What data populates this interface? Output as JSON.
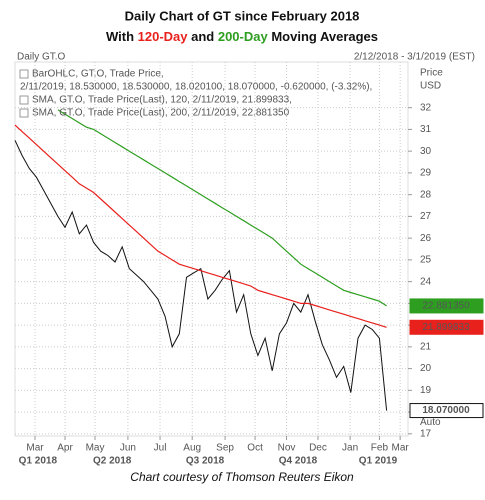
{
  "chart_data": {
    "type": "line",
    "title": "Daily Chart of GT since February 2018",
    "subtitle_parts": [
      {
        "text": "With ",
        "color": "#111111"
      },
      {
        "text": "120-Day",
        "color": "#e8211d"
      },
      {
        "text": " and ",
        "color": "#111111"
      },
      {
        "text": "200-Day",
        "color": "#2e9e20"
      },
      {
        "text": " Moving Averages",
        "color": "#111111"
      }
    ],
    "chart_label": "Daily GT.O",
    "date_range": "2/12/2018 - 3/1/2019 (EST)",
    "y_axis_label": [
      "Price",
      "USD"
    ],
    "auto_label": "Auto",
    "footer": "Chart courtesy of Thomson Reuters Eikon",
    "xlim": [
      0,
      55
    ],
    "xticks": [
      {
        "value": 2.8,
        "label": "Mar"
      },
      {
        "value": 7.0,
        "label": "Apr"
      },
      {
        "value": 11.2,
        "label": "May"
      },
      {
        "value": 15.8,
        "label": "Jun"
      },
      {
        "value": 20.3,
        "label": "Jul"
      },
      {
        "value": 24.8,
        "label": "Aug"
      },
      {
        "value": 29.4,
        "label": "Sep"
      },
      {
        "value": 33.6,
        "label": "Oct"
      },
      {
        "value": 38.0,
        "label": "Nov"
      },
      {
        "value": 42.4,
        "label": "Dec"
      },
      {
        "value": 46.9,
        "label": "Jan"
      },
      {
        "value": 51.0,
        "label": "Feb"
      },
      {
        "value": 53.9,
        "label": "Mar"
      }
    ],
    "quarter_ticks": [
      {
        "value": 3.2,
        "label": "Q1 2018"
      },
      {
        "value": 13.6,
        "label": "Q2 2018"
      },
      {
        "value": 26.6,
        "label": "Q3 2018"
      },
      {
        "value": 39.6,
        "label": "Q4 2018"
      },
      {
        "value": 50.8,
        "label": "Q1 2019"
      }
    ],
    "ylim": [
      16.9,
      34.1
    ],
    "yticks": [
      17,
      18,
      19,
      20,
      21,
      22,
      23,
      24,
      25,
      26,
      27,
      28,
      29,
      30,
      31,
      32
    ],
    "grid": true,
    "series": [
      {
        "name": "BarOHLC, GT.O, Trade Price,",
        "detail": "2/11/2019, 18.530000, 18.530000, 18.020100, 18.070000, -0.620000, (-3.32%),",
        "color": "#111111",
        "last_label": "18.070000",
        "values": [
          30.5,
          29.8,
          29.2,
          28.8,
          28.2,
          27.6,
          27.0,
          26.5,
          27.2,
          26.2,
          26.6,
          25.8,
          25.4,
          25.2,
          24.9,
          25.6,
          24.6,
          24.3,
          24.0,
          23.6,
          23.2,
          22.4,
          21.0,
          21.6,
          24.2,
          24.4,
          24.6,
          23.2,
          23.6,
          24.1,
          24.5,
          22.6,
          23.4,
          21.6,
          20.6,
          21.4,
          19.9,
          21.6,
          22.1,
          23.0,
          22.6,
          23.4,
          22.2,
          21.1,
          20.4,
          19.6,
          20.1,
          18.9,
          21.4,
          22.0,
          21.8,
          21.4,
          18.07
        ]
      },
      {
        "name": "SMA, GT.O, Trade Price(Last),   120,  2/11/2019, 21.899833,",
        "color": "#e8211d",
        "last_label": "21.899833",
        "values": [
          31.2,
          30.9,
          30.6,
          30.3,
          30.0,
          29.7,
          29.4,
          29.1,
          28.8,
          28.5,
          28.3,
          28.1,
          27.8,
          27.5,
          27.2,
          26.9,
          26.6,
          26.3,
          26.0,
          25.7,
          25.4,
          25.2,
          25.0,
          24.8,
          24.7,
          24.6,
          24.5,
          24.4,
          24.3,
          24.2,
          24.1,
          24.0,
          23.9,
          23.8,
          23.6,
          23.5,
          23.4,
          23.3,
          23.2,
          23.1,
          23.0,
          23.0,
          22.9,
          22.8,
          22.7,
          22.6,
          22.5,
          22.4,
          22.3,
          22.2,
          22.1,
          22.0,
          21.899833
        ]
      },
      {
        "name": "SMA, GT.O, Trade Price(Last),   200,  2/11/2019, 22.881350",
        "color": "#2e9e20",
        "last_label": "22.881350",
        "values": [
          null,
          null,
          null,
          null,
          null,
          null,
          31.9,
          31.7,
          31.5,
          31.3,
          31.1,
          31.0,
          30.8,
          30.6,
          30.4,
          30.2,
          30.0,
          29.8,
          29.6,
          29.4,
          29.2,
          29.0,
          28.8,
          28.6,
          28.4,
          28.2,
          28.0,
          27.8,
          27.6,
          27.4,
          27.2,
          27.0,
          26.8,
          26.6,
          26.4,
          26.2,
          26.0,
          25.7,
          25.4,
          25.1,
          24.8,
          24.6,
          24.4,
          24.2,
          24.0,
          23.8,
          23.6,
          23.5,
          23.4,
          23.3,
          23.2,
          23.1,
          22.88135
        ]
      }
    ]
  }
}
